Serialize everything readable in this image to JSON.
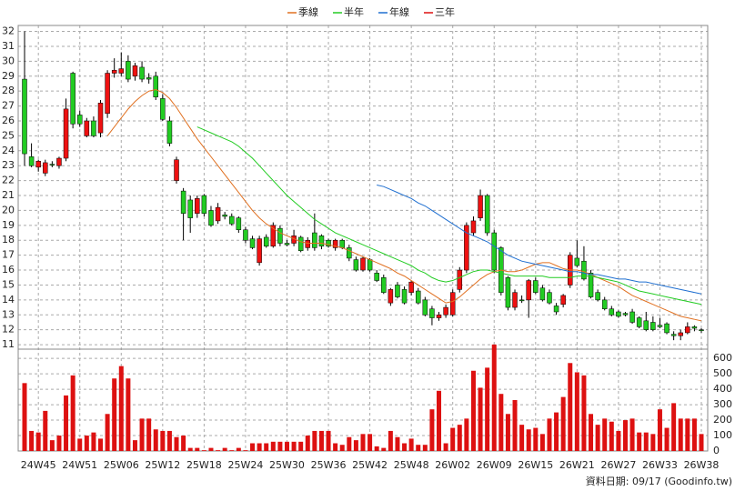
{
  "chart_data": {
    "type": "candlestick",
    "legend_position": "top",
    "grid": true,
    "up_color": "#ee1111",
    "down_color": "#22cc22",
    "categories": [
      null,
      null,
      "24W45",
      null,
      null,
      null,
      null,
      null,
      "24W51",
      null,
      null,
      null,
      null,
      null,
      "25W06",
      null,
      null,
      null,
      null,
      null,
      "25W12",
      null,
      null,
      null,
      null,
      null,
      "25W18",
      null,
      null,
      null,
      null,
      null,
      "25W24",
      null,
      null,
      null,
      null,
      null,
      "25W30",
      null,
      null,
      null,
      null,
      null,
      "25W36",
      null,
      null,
      null,
      null,
      null,
      "25W42",
      null,
      null,
      null,
      null,
      null,
      "25W48",
      null,
      null,
      null,
      null,
      null,
      "26W02",
      null,
      null,
      null,
      null,
      null,
      "26W09",
      null,
      null,
      null,
      null,
      null,
      "26W15",
      null,
      null,
      null,
      null,
      null,
      "26W21",
      null,
      null,
      null,
      null,
      null,
      "26W27",
      null,
      null,
      null,
      null,
      null,
      "26W33",
      null,
      null,
      null,
      null,
      null,
      "26W38"
    ],
    "open": [
      28.8,
      23.6,
      22.9,
      22.5,
      23.1,
      23.0,
      23.5,
      29.2,
      26.4,
      25.0,
      26.0,
      25.2,
      26.5,
      29.2,
      29.2,
      30.0,
      29.0,
      29.6,
      28.9,
      29.0,
      27.5,
      26.0,
      22.0,
      21.3,
      20.7,
      19.8,
      21.0,
      20.0,
      19.3,
      19.7,
      19.6,
      19.5,
      18.7,
      18.1,
      16.5,
      18.2,
      17.6,
      18.8,
      17.8,
      17.8,
      18.2,
      17.5,
      18.5,
      18.3,
      18.0,
      17.5,
      18.0,
      17.5,
      16.7,
      16.0,
      16.7,
      15.8,
      15.5,
      13.8,
      15.0,
      14.7,
      14.5,
      14.6,
      14.0,
      13.4,
      12.8,
      13.0,
      13.0,
      14.7,
      16.0,
      18.5,
      19.5,
      21.0,
      18.5,
      17.5,
      15.5,
      13.5,
      14.0,
      14.0,
      15.3,
      14.8,
      14.5,
      13.6,
      13.7,
      15.0,
      16.8,
      16.6,
      15.8,
      14.5,
      14.0,
      13.4,
      13.2,
      13.1,
      13.2,
      12.8,
      12.6,
      12.5,
      12.3,
      12.4,
      11.7,
      11.6,
      11.8,
      12.2,
      12.0
    ],
    "high": [
      32,
      24.5,
      23.4,
      23.4,
      23.3,
      23.6,
      27.5,
      29.3,
      26.7,
      26.2,
      26.3,
      27.4,
      29.4,
      30.2,
      30.6,
      30.4,
      29.9,
      30.0,
      29.2,
      29.3,
      27.8,
      26.3,
      23.6,
      21.5,
      21.0,
      21.0,
      21.1,
      20.3,
      20.5,
      19.9,
      19.8,
      19.6,
      18.9,
      18.3,
      18.3,
      18.4,
      19.2,
      19.0,
      18.0,
      18.7,
      18.3,
      18.2,
      19.8,
      18.4,
      18.1,
      18.1,
      18.1,
      17.7,
      16.9,
      16.9,
      16.8,
      16.0,
      15.7,
      14.8,
      15.2,
      14.9,
      15.3,
      14.8,
      14.2,
      13.6,
      13.2,
      13.7,
      14.7,
      16.2,
      19.2,
      19.6,
      21.4,
      21.1,
      18.7,
      17.6,
      15.6,
      14.7,
      14.3,
      15.4,
      15.5,
      15.0,
      14.7,
      13.8,
      14.4,
      17.2,
      18.0,
      17.6,
      16.0,
      14.7,
      14.2,
      13.6,
      13.3,
      13.2,
      13.4,
      12.9,
      13.2,
      12.9,
      12.8,
      12.5,
      11.9,
      12.0,
      12.5,
      12.3,
      12.1
    ],
    "low": [
      23,
      22.9,
      22.6,
      22.3,
      22.9,
      22.8,
      23.3,
      25.5,
      25.6,
      24.9,
      24.9,
      24.9,
      26.2,
      28.9,
      29.0,
      28.6,
      28.7,
      28.6,
      28.5,
      27.4,
      26.0,
      24.3,
      21.8,
      18.0,
      18.5,
      19.5,
      19.6,
      18.9,
      19.1,
      19.4,
      19.0,
      18.5,
      17.8,
      17.4,
      16.3,
      17.5,
      17.5,
      17.6,
      17.6,
      17.6,
      17.2,
      17.3,
      17.3,
      17.4,
      17.5,
      17.3,
      17.4,
      16.6,
      15.9,
      15.9,
      15.9,
      15.2,
      14.4,
      13.6,
      14.1,
      13.7,
      14.3,
      13.7,
      12.9,
      12.3,
      12.6,
      12.8,
      12.9,
      14.5,
      15.8,
      18.3,
      19.3,
      18.3,
      15.8,
      14.3,
      13.3,
      13.3,
      13.8,
      12.8,
      14.4,
      13.9,
      13.7,
      13.0,
      13.5,
      14.8,
      16.2,
      15.3,
      14.1,
      13.9,
      13.3,
      12.9,
      12.8,
      12.9,
      12.4,
      12.1,
      11.9,
      11.9,
      12.1,
      11.7,
      11.3,
      11.3,
      11.7,
      11.9,
      11.8
    ],
    "close": [
      23.8,
      23.0,
      23.3,
      23.2,
      23.1,
      23.5,
      26.8,
      25.8,
      25.8,
      26.0,
      25.0,
      27.2,
      29.2,
      29.4,
      29.5,
      28.8,
      29.7,
      28.8,
      28.8,
      27.6,
      26.1,
      24.5,
      23.4,
      19.8,
      19.5,
      20.8,
      19.8,
      19.0,
      20.2,
      19.6,
      19.1,
      18.7,
      18.0,
      17.5,
      18.1,
      17.6,
      19.0,
      17.8,
      17.7,
      18.3,
      17.3,
      18.0,
      17.5,
      17.6,
      17.6,
      18.0,
      17.5,
      16.8,
      16.0,
      16.8,
      16.0,
      15.3,
      14.5,
      14.7,
      14.2,
      13.8,
      15.2,
      13.8,
      13.0,
      12.8,
      13.0,
      13.5,
      14.5,
      16.0,
      19.0,
      19.3,
      21.0,
      18.5,
      16.0,
      14.5,
      13.5,
      14.5,
      14.0,
      15.3,
      14.5,
      14.0,
      13.8,
      13.2,
      14.3,
      17.0,
      16.3,
      15.4,
      14.2,
      14.0,
      13.4,
      13.0,
      12.9,
      13.0,
      12.5,
      12.2,
      12.0,
      12.0,
      12.2,
      11.8,
      11.6,
      11.8,
      12.2,
      12.1,
      12.0
    ],
    "series": [
      {
        "name": "季線",
        "color": "#e07020",
        "values": [
          null,
          null,
          null,
          null,
          null,
          null,
          null,
          null,
          null,
          null,
          null,
          null,
          25.0,
          25.6,
          26.2,
          26.8,
          27.3,
          27.7,
          28.0,
          28.1,
          27.9,
          27.5,
          26.9,
          26.2,
          25.5,
          24.8,
          24.2,
          23.6,
          23.0,
          22.4,
          21.8,
          21.2,
          20.6,
          20.0,
          19.5,
          19.1,
          18.8,
          18.5,
          18.3,
          18.1,
          17.9,
          17.8,
          17.8,
          17.8,
          17.7,
          17.6,
          17.5,
          17.3,
          17.1,
          16.9,
          16.7,
          16.5,
          16.3,
          16.1,
          15.8,
          15.6,
          15.3,
          15.0,
          14.7,
          14.4,
          14.1,
          13.8,
          13.9,
          14.2,
          14.6,
          15.0,
          15.4,
          15.7,
          15.9,
          16.0,
          15.9,
          15.9,
          16.0,
          16.2,
          16.4,
          16.5,
          16.5,
          16.3,
          16.1,
          16.0,
          16.0,
          15.9,
          15.7,
          15.5,
          15.3,
          15.1,
          14.9,
          14.6,
          14.3,
          14.1,
          13.9,
          13.7,
          13.5,
          13.3,
          13.1,
          12.9,
          12.8,
          12.7,
          12.6
        ]
      },
      {
        "name": "半年",
        "color": "#22cc22",
        "values": [
          null,
          null,
          null,
          null,
          null,
          null,
          null,
          null,
          null,
          null,
          null,
          null,
          null,
          null,
          null,
          null,
          null,
          null,
          null,
          null,
          null,
          null,
          null,
          null,
          null,
          25.6,
          25.4,
          25.2,
          25.0,
          24.8,
          24.6,
          24.3,
          23.9,
          23.5,
          23.0,
          22.5,
          22.0,
          21.5,
          21.0,
          20.6,
          20.2,
          19.8,
          19.4,
          19.1,
          18.8,
          18.5,
          18.3,
          18.1,
          17.9,
          17.7,
          17.5,
          17.3,
          17.1,
          16.9,
          16.7,
          16.5,
          16.3,
          16.0,
          15.8,
          15.5,
          15.3,
          15.2,
          15.3,
          15.5,
          15.7,
          15.9,
          16.0,
          16.0,
          15.9,
          15.8,
          15.7,
          15.6,
          15.6,
          15.6,
          15.6,
          15.6,
          15.5,
          15.5,
          15.5,
          15.5,
          15.6,
          15.6,
          15.6,
          15.5,
          15.4,
          15.3,
          15.2,
          15.0,
          14.8,
          14.6,
          14.5,
          14.4,
          14.3,
          14.2,
          14.1,
          14.0,
          13.9,
          13.8,
          13.7
        ]
      },
      {
        "name": "年線",
        "color": "#1f6fd0",
        "values": [
          null,
          null,
          null,
          null,
          null,
          null,
          null,
          null,
          null,
          null,
          null,
          null,
          null,
          null,
          null,
          null,
          null,
          null,
          null,
          null,
          null,
          null,
          null,
          null,
          null,
          null,
          null,
          null,
          null,
          null,
          null,
          null,
          null,
          null,
          null,
          null,
          null,
          null,
          null,
          null,
          null,
          null,
          null,
          null,
          null,
          null,
          null,
          null,
          null,
          null,
          null,
          21.7,
          21.6,
          21.4,
          21.2,
          21.0,
          20.8,
          20.5,
          20.3,
          20.0,
          19.7,
          19.4,
          19.1,
          18.8,
          18.5,
          18.3,
          18.1,
          17.9,
          17.6,
          17.3,
          17.0,
          16.8,
          16.6,
          16.5,
          16.4,
          16.3,
          16.2,
          16.1,
          16.0,
          15.9,
          15.9,
          15.8,
          15.7,
          15.7,
          15.6,
          15.5,
          15.4,
          15.4,
          15.3,
          15.2,
          15.2,
          15.1,
          15.0,
          14.9,
          14.8,
          14.7,
          14.6,
          14.5,
          14.4
        ]
      },
      {
        "name": "三年",
        "color": "#dd1111",
        "values": [
          null,
          null,
          null,
          null,
          null,
          null,
          null,
          null,
          null,
          null,
          null,
          null,
          null,
          null,
          null,
          null,
          null,
          null,
          null,
          null,
          null,
          null,
          null,
          null,
          null,
          null,
          null,
          null,
          null,
          null,
          null,
          null,
          null,
          null,
          null,
          null,
          null,
          null,
          null,
          null,
          null,
          null,
          null,
          null,
          null,
          null,
          null,
          null,
          null,
          null,
          null,
          null,
          null,
          null,
          null,
          null,
          null,
          null,
          null,
          null,
          null,
          null,
          null,
          null,
          null,
          null,
          null,
          null,
          null,
          null,
          null,
          null,
          null,
          null,
          null,
          null,
          null,
          null,
          null,
          null,
          null,
          null,
          null,
          null,
          null,
          null,
          null,
          null,
          null,
          null,
          null,
          null,
          null,
          null,
          null,
          null,
          null,
          null,
          null
        ]
      }
    ],
    "ylim": [
      10.7,
      32.4
    ],
    "yticks": [
      11,
      12,
      13,
      14,
      15,
      16,
      17,
      18,
      19,
      20,
      21,
      22,
      23,
      24,
      25,
      26,
      27,
      28,
      29,
      30,
      31,
      32
    ],
    "volume": {
      "type": "bar",
      "color": "#dd1111",
      "values": [
        440,
        130,
        120,
        260,
        70,
        100,
        360,
        490,
        80,
        100,
        120,
        80,
        240,
        470,
        550,
        470,
        70,
        210,
        210,
        140,
        130,
        130,
        90,
        100,
        20,
        20,
        5,
        20,
        5,
        20,
        5,
        20,
        5,
        50,
        50,
        50,
        60,
        60,
        60,
        60,
        60,
        100,
        130,
        130,
        130,
        50,
        40,
        90,
        70,
        110,
        110,
        30,
        20,
        130,
        90,
        50,
        80,
        40,
        40,
        270,
        390,
        50,
        150,
        170,
        210,
        520,
        410,
        540,
        690,
        370,
        240,
        330,
        170,
        140,
        150,
        110,
        210,
        250,
        350,
        570,
        510,
        490,
        240,
        170,
        210,
        190,
        130,
        200,
        210,
        120,
        120,
        110,
        270,
        150,
        310,
        210,
        210,
        210,
        110
      ],
      "ylim": [
        0,
        660
      ],
      "yticks": [
        0,
        100,
        200,
        300,
        400,
        500,
        600
      ]
    },
    "footer": "資料日期: 09/17  (Goodinfo.tw)"
  }
}
